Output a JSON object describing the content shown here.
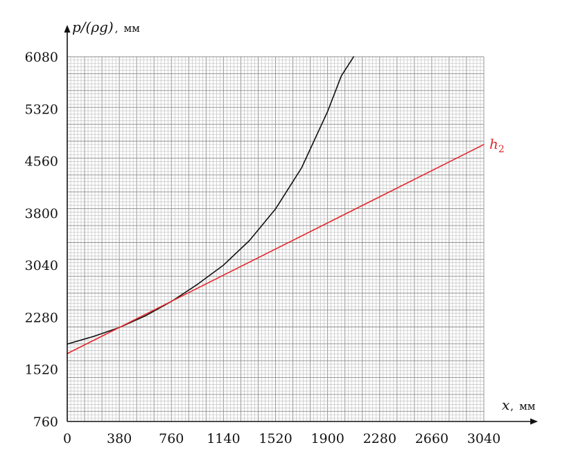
{
  "chart_data": {
    "type": "line",
    "title": "",
    "xlabel": "x",
    "xlabel_unit": "мм",
    "ylabel": "p/(ρg)",
    "ylabel_unit": "мм",
    "xlim": [
      0,
      3040
    ],
    "ylim": [
      760,
      6080
    ],
    "x_ticks": [
      "0",
      "380",
      "760",
      "1140",
      "1520",
      "1900",
      "2280",
      "2660",
      "3040"
    ],
    "y_ticks": [
      "760",
      "1520",
      "2280",
      "3040",
      "3800",
      "4560",
      "5320",
      "6080"
    ],
    "grid": true,
    "series": [
      {
        "name": "",
        "color": "#111111",
        "x": [
          0,
          190,
          380,
          570,
          760,
          950,
          1140,
          1330,
          1520,
          1710,
          1900,
          2000,
          2090
        ],
        "y": [
          1890,
          2000,
          2130,
          2300,
          2510,
          2760,
          3040,
          3400,
          3860,
          4460,
          5280,
          5800,
          6080
        ]
      },
      {
        "name": "h2",
        "color": "#e3262b",
        "x": [
          0,
          3040
        ],
        "y": [
          1750,
          4800
        ]
      }
    ]
  }
}
